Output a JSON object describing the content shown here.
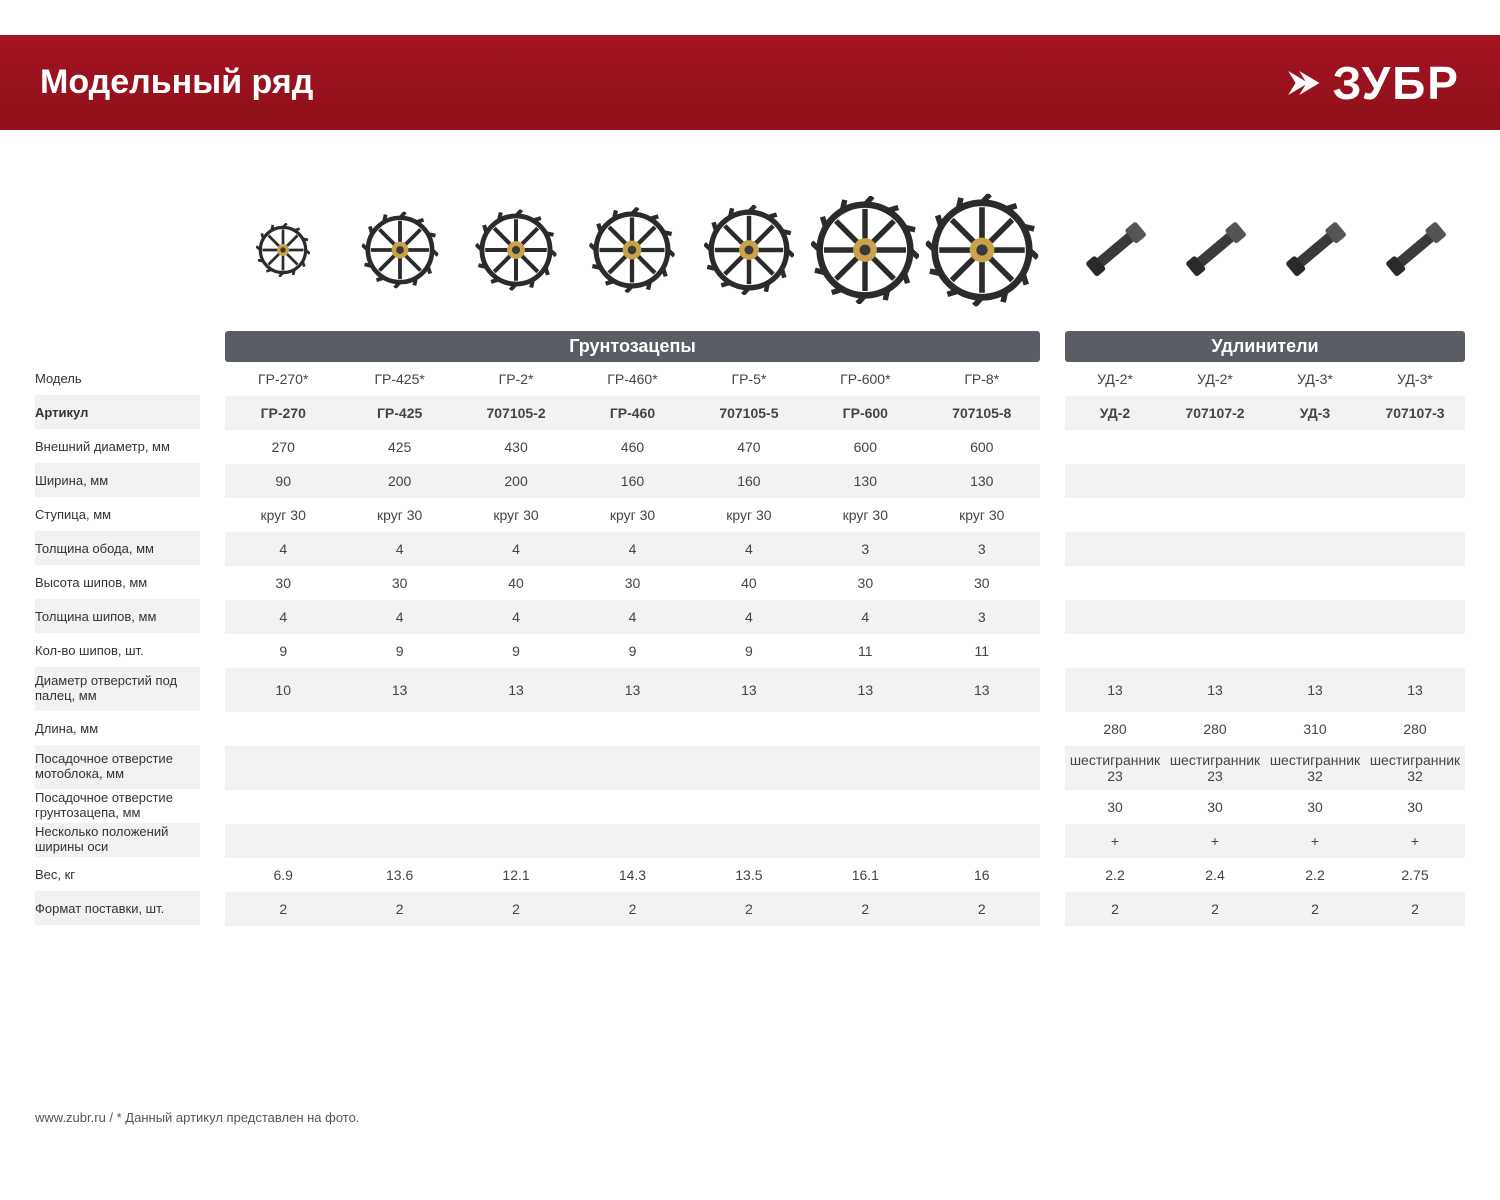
{
  "page": {
    "title": "Модельный ряд",
    "brand": "ЗУБР",
    "footer": "www.zubr.ru  /  * Данный артикул представлен на фото."
  },
  "colors": {
    "header_bg": "#9b111e",
    "group_header_bg": "#5a5d63",
    "stripe": "#f2f2f2",
    "text": "#444444",
    "label_text": "#333333"
  },
  "groups": {
    "g1": "Грунтозацепы",
    "g2": "Удлинители"
  },
  "row_labels": [
    "Модель",
    "Артикул",
    "Внешний диаметр, мм",
    "Ширина, мм",
    "Ступица, мм",
    "Толщина обода, мм",
    "Высота шипов, мм",
    "Толщина шипов, мм",
    "Кол-во шипов, шт.",
    "Диаметр отверстий под палец, мм",
    "Длина, мм",
    "Посадочное отверстие мотоблока, мм",
    "Посадочное отверстие грунтозацепа, мм",
    "Несколько положений ширины оси",
    "Вес, кг",
    "Формат поставки, шт."
  ],
  "g1_cols": [
    {
      "model": "ГР-270*",
      "art": "ГР-270",
      "diam": "270",
      "width": "90",
      "hub": "круг 30",
      "rim": "4",
      "spikeH": "30",
      "spikeT": "4",
      "spikeN": "9",
      "pinD": "10",
      "len": "",
      "motoHole": "",
      "grHole": "",
      "multi": "",
      "weight": "6.9",
      "fmt": "2"
    },
    {
      "model": "ГР-425*",
      "art": "ГР-425",
      "diam": "425",
      "width": "200",
      "hub": "круг 30",
      "rim": "4",
      "spikeH": "30",
      "spikeT": "4",
      "spikeN": "9",
      "pinD": "13",
      "len": "",
      "motoHole": "",
      "grHole": "",
      "multi": "",
      "weight": "13.6",
      "fmt": "2"
    },
    {
      "model": "ГР-2*",
      "art": "707105-2",
      "diam": "430",
      "width": "200",
      "hub": "круг 30",
      "rim": "4",
      "spikeH": "40",
      "spikeT": "4",
      "spikeN": "9",
      "pinD": "13",
      "len": "",
      "motoHole": "",
      "grHole": "",
      "multi": "",
      "weight": "12.1",
      "fmt": "2"
    },
    {
      "model": "ГР-460*",
      "art": "ГР-460",
      "diam": "460",
      "width": "160",
      "hub": "круг 30",
      "rim": "4",
      "spikeH": "30",
      "spikeT": "4",
      "spikeN": "9",
      "pinD": "13",
      "len": "",
      "motoHole": "",
      "grHole": "",
      "multi": "",
      "weight": "14.3",
      "fmt": "2"
    },
    {
      "model": "ГР-5*",
      "art": "707105-5",
      "diam": "470",
      "width": "160",
      "hub": "круг 30",
      "rim": "4",
      "spikeH": "40",
      "spikeT": "4",
      "spikeN": "9",
      "pinD": "13",
      "len": "",
      "motoHole": "",
      "grHole": "",
      "multi": "",
      "weight": "13.5",
      "fmt": "2"
    },
    {
      "model": "ГР-600*",
      "art": "ГР-600",
      "diam": "600",
      "width": "130",
      "hub": "круг 30",
      "rim": "3",
      "spikeH": "30",
      "spikeT": "4",
      "spikeN": "11",
      "pinD": "13",
      "len": "",
      "motoHole": "",
      "grHole": "",
      "multi": "",
      "weight": "16.1",
      "fmt": "2"
    },
    {
      "model": "ГР-8*",
      "art": "707105-8",
      "diam": "600",
      "width": "130",
      "hub": "круг 30",
      "rim": "3",
      "spikeH": "30",
      "spikeT": "3",
      "spikeN": "11",
      "pinD": "13",
      "len": "",
      "motoHole": "",
      "grHole": "",
      "multi": "",
      "weight": "16",
      "fmt": "2"
    }
  ],
  "g2_cols": [
    {
      "model": "УД-2*",
      "art": "УД-2",
      "diam": "",
      "width": "",
      "hub": "",
      "rim": "",
      "spikeH": "",
      "spikeT": "",
      "spikeN": "",
      "pinD": "13",
      "len": "280",
      "motoHole": "шестигранник 23",
      "grHole": "30",
      "multi": "+",
      "weight": "2.2",
      "fmt": "2"
    },
    {
      "model": "УД-2*",
      "art": "707107-2",
      "diam": "",
      "width": "",
      "hub": "",
      "rim": "",
      "spikeH": "",
      "spikeT": "",
      "spikeN": "",
      "pinD": "13",
      "len": "280",
      "motoHole": "шестигранник 23",
      "grHole": "30",
      "multi": "+",
      "weight": "2.4",
      "fmt": "2"
    },
    {
      "model": "УД-3*",
      "art": "УД-3",
      "diam": "",
      "width": "",
      "hub": "",
      "rim": "",
      "spikeH": "",
      "spikeT": "",
      "spikeN": "",
      "pinD": "13",
      "len": "310",
      "motoHole": "шестигранник 32",
      "grHole": "30",
      "multi": "+",
      "weight": "2.2",
      "fmt": "2"
    },
    {
      "model": "УД-3*",
      "art": "707107-3",
      "diam": "",
      "width": "",
      "hub": "",
      "rim": "",
      "spikeH": "",
      "spikeT": "",
      "spikeN": "",
      "pinD": "13",
      "len": "280",
      "motoHole": "шестигранник 32",
      "grHole": "30",
      "multi": "+",
      "weight": "2.75",
      "fmt": "2"
    }
  ],
  "row_keys": [
    "model",
    "art",
    "diam",
    "width",
    "hub",
    "rim",
    "spikeH",
    "spikeT",
    "spikeN",
    "pinD",
    "len",
    "motoHole",
    "grHole",
    "multi",
    "weight",
    "fmt"
  ],
  "row_stripe": [
    false,
    true,
    false,
    true,
    false,
    true,
    false,
    true,
    false,
    true,
    false,
    true,
    false,
    true,
    false,
    true
  ],
  "row_bold": [
    false,
    true,
    false,
    false,
    false,
    false,
    false,
    false,
    false,
    false,
    false,
    false,
    false,
    false,
    false,
    false
  ],
  "row_tall": [
    false,
    false,
    false,
    false,
    false,
    false,
    false,
    false,
    false,
    true,
    false,
    true,
    false,
    false,
    false,
    false
  ],
  "row_multi_label": [
    false,
    false,
    false,
    false,
    false,
    false,
    false,
    false,
    false,
    true,
    false,
    true,
    true,
    true,
    false,
    false
  ]
}
